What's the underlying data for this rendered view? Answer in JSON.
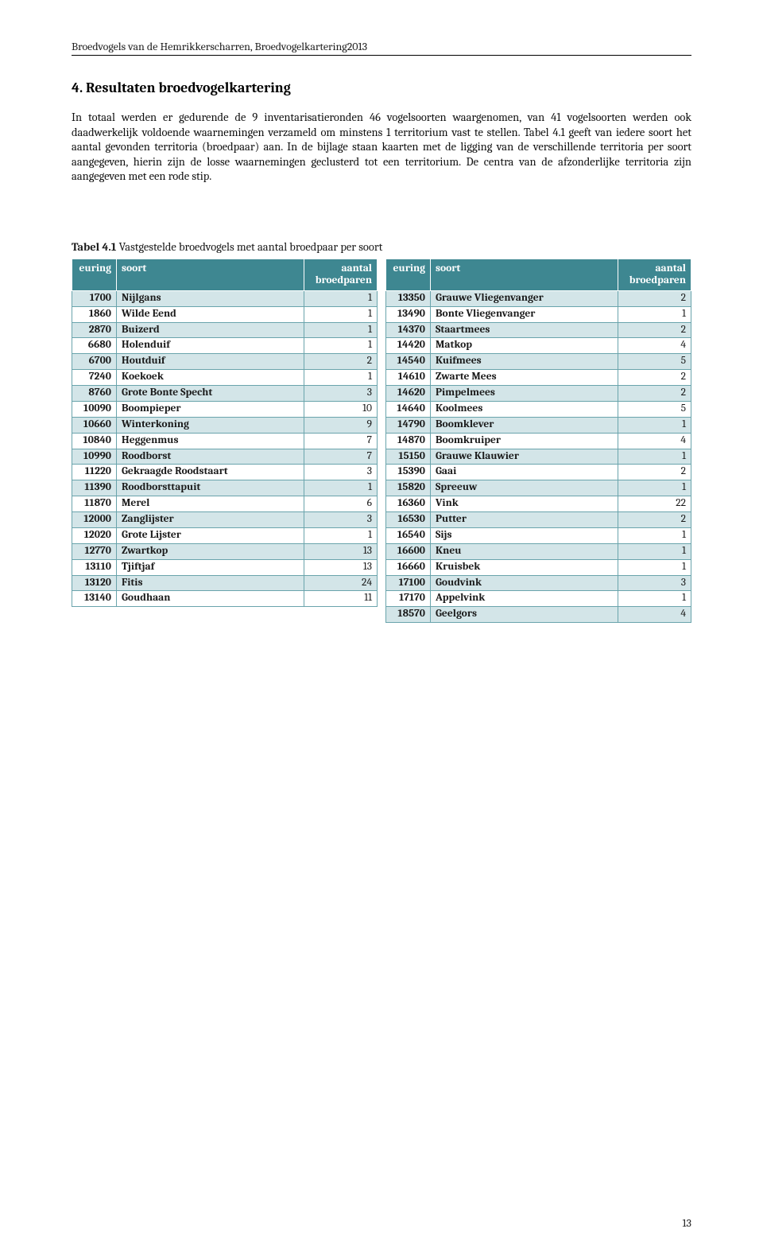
{
  "header": "Broedvogels van de Hemrikkerscharren, Broedvogelkartering2013",
  "section_title": "4. Resultaten broedvogelkartering",
  "paragraph": "In totaal werden er gedurende de 9 inventarisatieronden 46 vogelsoorten waargenomen, van 41 vogelsoorten werden ook daadwerkelijk voldoende waarnemingen verzameld om minstens 1 territorium vast te stellen.  Tabel 4.1 geeft van iedere soort het aantal gevonden territoria (broedpaar) aan. In de bijlage staan kaarten met de ligging van de verschillende territoria per soort aangegeven, hierin zijn de losse waarnemingen geclusterd tot een territorium. De centra van de afzonderlijke territoria zijn aangegeven met een rode stip.",
  "table_caption_bold": "Tabel 4.1",
  "table_caption_rest": " Vastgestelde broedvogels met aantal broedpaar per soort",
  "columns": {
    "euring": "euring",
    "soort": "soort",
    "aantal": "aantal broedparen"
  },
  "colors": {
    "header_bg": "#3e8791",
    "header_fg": "#ffffff",
    "row_alt_bg": "#d3e5e8",
    "row_bg": "#ffffff",
    "border": "#6aa4ac"
  },
  "left_rows": [
    {
      "e": "1700",
      "s": "Nijlgans",
      "a": "1"
    },
    {
      "e": "1860",
      "s": "Wilde Eend",
      "a": "1"
    },
    {
      "e": "2870",
      "s": "Buizerd",
      "a": "1"
    },
    {
      "e": "6680",
      "s": "Holenduif",
      "a": "1"
    },
    {
      "e": "6700",
      "s": "Houtduif",
      "a": "2"
    },
    {
      "e": "7240",
      "s": "Koekoek",
      "a": "1"
    },
    {
      "e": "8760",
      "s": "Grote Bonte Specht",
      "a": "3"
    },
    {
      "e": "10090",
      "s": "Boompieper",
      "a": "10"
    },
    {
      "e": "10660",
      "s": "Winterkoning",
      "a": "9"
    },
    {
      "e": "10840",
      "s": "Heggenmus",
      "a": "7"
    },
    {
      "e": "10990",
      "s": "Roodborst",
      "a": "7"
    },
    {
      "e": "11220",
      "s": "Gekraagde Roodstaart",
      "a": "3"
    },
    {
      "e": "11390",
      "s": "Roodborsttapuit",
      "a": "1"
    },
    {
      "e": "11870",
      "s": "Merel",
      "a": "6"
    },
    {
      "e": "12000",
      "s": "Zanglijster",
      "a": "3"
    },
    {
      "e": "12020",
      "s": "Grote Lijster",
      "a": "1"
    },
    {
      "e": "12770",
      "s": "Zwartkop",
      "a": "13"
    },
    {
      "e": "13110",
      "s": "Tjiftjaf",
      "a": "13"
    },
    {
      "e": "13120",
      "s": "Fitis",
      "a": "24"
    },
    {
      "e": "13140",
      "s": "Goudhaan",
      "a": "11"
    }
  ],
  "right_rows": [
    {
      "e": "13350",
      "s": "Grauwe Vliegenvanger",
      "a": "2"
    },
    {
      "e": "13490",
      "s": "Bonte Vliegenvanger",
      "a": "1"
    },
    {
      "e": "14370",
      "s": "Staartmees",
      "a": "2"
    },
    {
      "e": "14420",
      "s": "Matkop",
      "a": "4"
    },
    {
      "e": "14540",
      "s": "Kuifmees",
      "a": "5"
    },
    {
      "e": "14610",
      "s": "Zwarte Mees",
      "a": "2"
    },
    {
      "e": "14620",
      "s": "Pimpelmees",
      "a": "2"
    },
    {
      "e": "14640",
      "s": "Koolmees",
      "a": "5"
    },
    {
      "e": "14790",
      "s": "Boomklever",
      "a": "1"
    },
    {
      "e": "14870",
      "s": "Boomkruiper",
      "a": "4"
    },
    {
      "e": "15150",
      "s": "Grauwe Klauwier",
      "a": "1"
    },
    {
      "e": "15390",
      "s": "Gaai",
      "a": "2"
    },
    {
      "e": "15820",
      "s": "Spreeuw",
      "a": "1"
    },
    {
      "e": "16360",
      "s": "Vink",
      "a": "22"
    },
    {
      "e": "16530",
      "s": "Putter",
      "a": "2"
    },
    {
      "e": "16540",
      "s": "Sijs",
      "a": "1"
    },
    {
      "e": "16600",
      "s": "Kneu",
      "a": "1"
    },
    {
      "e": "16660",
      "s": "Kruisbek",
      "a": "1"
    },
    {
      "e": "17100",
      "s": "Goudvink",
      "a": "3"
    },
    {
      "e": "17170",
      "s": "Appelvink",
      "a": "1"
    },
    {
      "e": "18570",
      "s": "Geelgors",
      "a": "4"
    }
  ],
  "page_number": "13"
}
